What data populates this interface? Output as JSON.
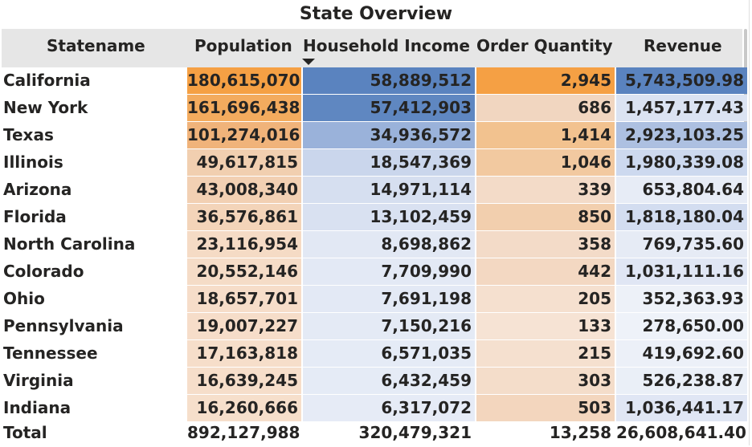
{
  "title": "State Overview",
  "columns": {
    "statename": "Statename",
    "population": "Population",
    "household_income": "Household Income",
    "order_quantity": "Order Quantity",
    "revenue": "Revenue"
  },
  "sort": {
    "column": "Household Income",
    "direction": "descending",
    "icon": "sort-descending-icon"
  },
  "colors": {
    "header_bg": "#e6e6e6",
    "orange_scale": [
      "#fbe8d8",
      "#f3a042"
    ],
    "blue_scale": [
      "#eef2f9",
      "#4f81bd"
    ]
  },
  "rows": [
    {
      "state": "California",
      "population": "180,615,070",
      "household_income": "58,889,512",
      "order_quantity": "2,945",
      "revenue": "5,743,509.98",
      "pop_color": "#f5a044",
      "inc_color": "#5a83bf",
      "ord_color": "#f5a044",
      "rev_color": "#5a83bf"
    },
    {
      "state": "New York",
      "population": "161,696,438",
      "household_income": "57,412,903",
      "order_quantity": "686",
      "revenue": "1,457,177.43",
      "pop_color": "#f3ab5e",
      "inc_color": "#5f87c1",
      "ord_color": "#f1d6c0",
      "rev_color": "#dbe3f2"
    },
    {
      "state": "Texas",
      "population": "101,274,016",
      "household_income": "34,936,572",
      "order_quantity": "1,414",
      "revenue": "2,923,103.25",
      "pop_color": "#f0b37a",
      "inc_color": "#9ab2da",
      "ord_color": "#f2c28f",
      "rev_color": "#adc0e1"
    },
    {
      "state": "Illinois",
      "population": "49,617,815",
      "household_income": "18,547,369",
      "order_quantity": "1,046",
      "revenue": "1,980,339.08",
      "pop_color": "#f1cfb0",
      "inc_color": "#cad6ec",
      "ord_color": "#f2c9a0",
      "rev_color": "#cdd9ef"
    },
    {
      "state": "Arizona",
      "population": "43,008,340",
      "household_income": "14,971,114",
      "order_quantity": "339",
      "revenue": "653,804.64",
      "pop_color": "#f2d0b3",
      "inc_color": "#d6dff0",
      "ord_color": "#f3dbc8",
      "rev_color": "#e7ecf6"
    },
    {
      "state": "Florida",
      "population": "36,576,861",
      "household_income": "13,102,459",
      "order_quantity": "850",
      "revenue": "1,818,180.04",
      "pop_color": "#f3d4b9",
      "inc_color": "#d9e1f1",
      "ord_color": "#f2cfae",
      "rev_color": "#d3ddf0"
    },
    {
      "state": "North Carolina",
      "population": "23,116,954",
      "household_income": "8,698,862",
      "order_quantity": "358",
      "revenue": "769,735.60",
      "pop_color": "#f5dbc5",
      "inc_color": "#e2e8f4",
      "ord_color": "#f3dbc8",
      "rev_color": "#e6ebf5"
    },
    {
      "state": "Colorado",
      "population": "20,552,146",
      "household_income": "7,709,990",
      "order_quantity": "442",
      "revenue": "1,031,111.16",
      "pop_color": "#f5dcc7",
      "inc_color": "#e3e9f5",
      "ord_color": "#f3d8c2",
      "rev_color": "#e0e6f4"
    },
    {
      "state": "Ohio",
      "population": "18,657,701",
      "household_income": "7,691,198",
      "order_quantity": "205",
      "revenue": "352,363.93",
      "pop_color": "#f6ddc9",
      "inc_color": "#e3e9f5",
      "ord_color": "#f5e0cf",
      "rev_color": "#edf1f8"
    },
    {
      "state": "Pennsylvania",
      "population": "19,007,227",
      "household_income": "7,150,216",
      "order_quantity": "133",
      "revenue": "278,650.00",
      "pop_color": "#f6ddc9",
      "inc_color": "#e4eaf5",
      "ord_color": "#f6e3d4",
      "rev_color": "#eef2f9"
    },
    {
      "state": "Tennessee",
      "population": "17,163,818",
      "household_income": "6,571,035",
      "order_quantity": "215",
      "revenue": "419,692.60",
      "pop_color": "#f6deca",
      "inc_color": "#e5ebf6",
      "ord_color": "#f5e0cf",
      "rev_color": "#ecf0f8"
    },
    {
      "state": "Virginia",
      "population": "16,639,245",
      "household_income": "6,432,459",
      "order_quantity": "303",
      "revenue": "526,238.87",
      "pop_color": "#f6deca",
      "inc_color": "#e5ebf6",
      "ord_color": "#f4ddca",
      "rev_color": "#eaeff7"
    },
    {
      "state": "Indiana",
      "population": "16,260,666",
      "household_income": "6,317,072",
      "order_quantity": "503",
      "revenue": "1,036,441.17",
      "pop_color": "#f6dfcb",
      "inc_color": "#e6ebf6",
      "ord_color": "#f3d6be",
      "rev_color": "#e0e6f4"
    }
  ],
  "total": {
    "label": "Total",
    "population": "892,127,988",
    "household_income": "320,479,321",
    "order_quantity": "13,258",
    "revenue": "26,608,641.40"
  }
}
